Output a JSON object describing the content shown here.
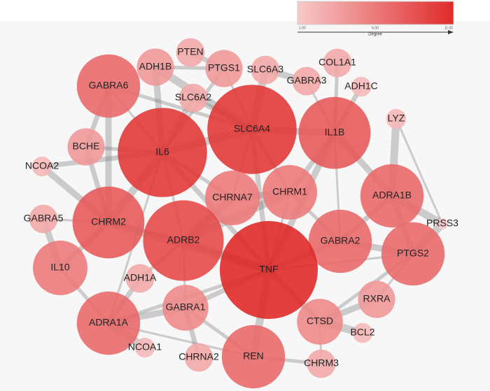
{
  "legend": {
    "title": "Degree",
    "min_label": "1.00",
    "mid_label": "6.00",
    "max_label": "11.00"
  },
  "nodes": [
    {
      "label": "GABRA6",
      "degree": 7
    },
    {
      "label": "ADH1B",
      "degree": 4
    },
    {
      "label": "PTEN",
      "degree": 3
    },
    {
      "label": "PTGS1",
      "degree": 4
    },
    {
      "label": "SLC6A3",
      "degree": 3
    },
    {
      "label": "COL1A1",
      "degree": 3
    },
    {
      "label": "GABRA3",
      "degree": 3
    },
    {
      "label": "ADH1C",
      "degree": 2
    },
    {
      "label": "SLC6A2",
      "degree": 3
    },
    {
      "label": "SLC6A4",
      "degree": 10
    },
    {
      "label": "IL1B",
      "degree": 8
    },
    {
      "label": "LYZ",
      "degree": 2
    },
    {
      "label": "BCHE",
      "degree": 4
    },
    {
      "label": "IL6",
      "degree": 10
    },
    {
      "label": "NCOA2",
      "degree": 2
    },
    {
      "label": "CHRNA7",
      "degree": 6
    },
    {
      "label": "CHRM1",
      "degree": 6
    },
    {
      "label": "ADRA1B",
      "degree": 7
    },
    {
      "label": "CHRM2",
      "degree": 8
    },
    {
      "label": "GABRA5",
      "degree": 3
    },
    {
      "label": "ADRB2",
      "degree": 9
    },
    {
      "label": "GABRA2",
      "degree": 7
    },
    {
      "label": "PRSS3",
      "degree": 1
    },
    {
      "label": "TNF",
      "degree": 11
    },
    {
      "label": "PTGS2",
      "degree": 7
    },
    {
      "label": "IL10",
      "degree": 6
    },
    {
      "label": "ADH1A",
      "degree": 3
    },
    {
      "label": "ADRA1A",
      "degree": 7
    },
    {
      "label": "GABRA1",
      "degree": 5
    },
    {
      "label": "RXRA",
      "degree": 4
    },
    {
      "label": "CTSD",
      "degree": 5
    },
    {
      "label": "BCL2",
      "degree": 2
    },
    {
      "label": "NCOA1",
      "degree": 2
    },
    {
      "label": "CHRNA2",
      "degree": 3
    },
    {
      "label": "REN",
      "degree": 7
    },
    {
      "label": "CHRM3",
      "degree": 3
    }
  ]
}
